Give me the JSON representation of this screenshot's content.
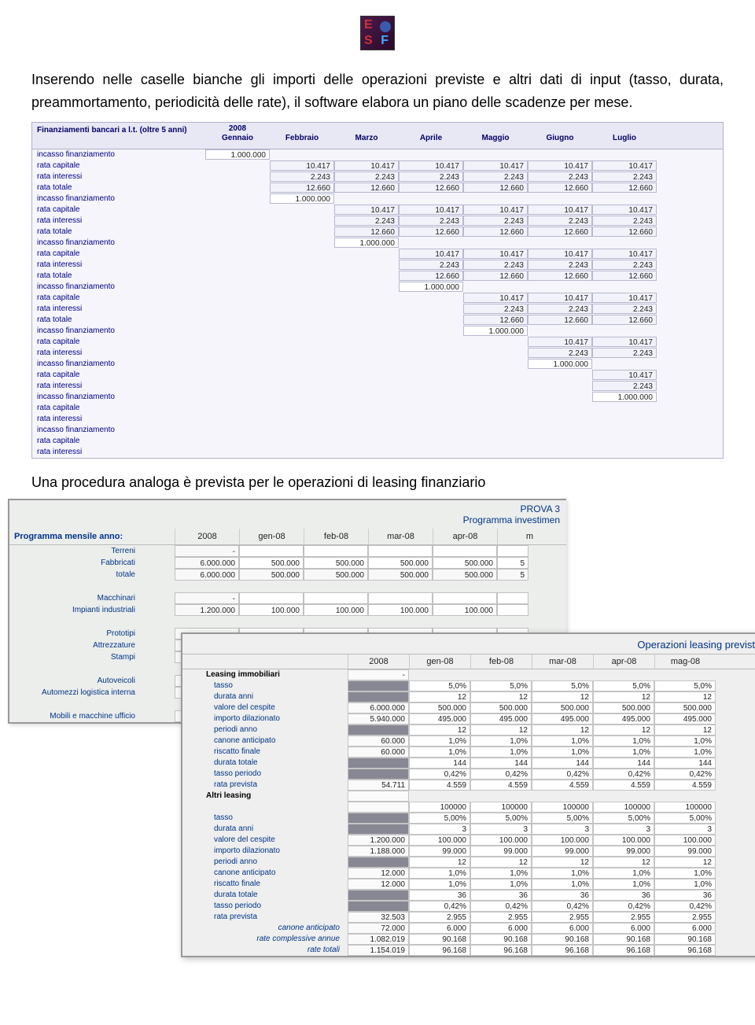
{
  "intro_text": "Inserendo nelle caselle bianche gli importi delle operazioni previste e altri dati di input (tasso, durata, preammortamento, periodicità delle rate), il software elabora un piano delle scadenze per mese.",
  "mid_text": "Una procedura analoga è prevista per le operazioni di leasing finanziario",
  "table1": {
    "title": "Finanziamenti bancari a l.t. (oltre 5 anni)",
    "year": "2008",
    "months": [
      "Gennaio",
      "Febbraio",
      "Marzo",
      "Aprile",
      "Maggio",
      "Giugno",
      "Luglio"
    ],
    "rowLabels": [
      "incasso finanziamento",
      "rata capitale",
      "rata interessi",
      "rata totale"
    ],
    "incasso": "1.000.000",
    "rata_capitale": "10.417",
    "rata_interessi": "2.243",
    "rata_totale": "12.660",
    "colors": {
      "header_bg": "#e8e8f5",
      "body_bg": "#f5f5fb",
      "cell_border": "#b8b8d0",
      "label_color": "#000088"
    }
  },
  "table2": {
    "title1": "PROVA 3",
    "title2": "Programma investimen",
    "rowTitle": "Programma mensile anno:",
    "year": "2008",
    "months": [
      "gen-08",
      "feb-08",
      "mar-08",
      "apr-08",
      "m"
    ],
    "rows": [
      {
        "label": "Terreni",
        "vals": [
          "-",
          "",
          "",
          "",
          "",
          ""
        ]
      },
      {
        "label": "Fabbricati",
        "vals": [
          "6.000.000",
          "500.000",
          "500.000",
          "500.000",
          "500.000",
          "5"
        ]
      },
      {
        "label": "totale",
        "tot": true,
        "vals": [
          "6.000.000",
          "500.000",
          "500.000",
          "500.000",
          "500.000",
          "5"
        ]
      },
      {
        "label": "",
        "blank": true
      },
      {
        "label": "Macchinari",
        "vals": [
          "-",
          "",
          "",
          "",
          "",
          ""
        ]
      },
      {
        "label": "Impianti industriali",
        "vals": [
          "1.200.000",
          "100.000",
          "100.000",
          "100.000",
          "100.000",
          ""
        ]
      },
      {
        "label": "",
        "blank": true
      },
      {
        "label": "Prototipi",
        "vals": [
          "",
          "",
          "",
          "",
          "",
          ""
        ]
      },
      {
        "label": "Attrezzature",
        "vals": [
          "",
          "",
          "",
          "",
          "",
          ""
        ]
      },
      {
        "label": "Stampi",
        "vals": [
          "",
          "",
          "",
          "",
          "",
          ""
        ]
      },
      {
        "label": "",
        "blank": true
      },
      {
        "label": "Autoveicoli",
        "vals": [
          "",
          "",
          "",
          "",
          "",
          ""
        ]
      },
      {
        "label": "Automezzi logistica interna",
        "vals": [
          "",
          "",
          "",
          "",
          "",
          ""
        ]
      },
      {
        "label": "",
        "blank": true
      },
      {
        "label": "Mobili e macchine ufficio",
        "vals": [
          "",
          "",
          "",
          "",
          "",
          ""
        ]
      }
    ]
  },
  "table3": {
    "title": "Operazioni leasing previst",
    "year": "2008",
    "months": [
      "gen-08",
      "feb-08",
      "mar-08",
      "apr-08",
      "mag-08"
    ],
    "sections": [
      {
        "header": "Leasing immobiliari",
        "dash": "-",
        "rows": [
          {
            "label": "tasso",
            "g": true,
            "vals": [
              "5,0%",
              "5,0%",
              "5,0%",
              "5,0%",
              "5,0%"
            ]
          },
          {
            "label": "durata anni",
            "g": true,
            "vals": [
              "12",
              "12",
              "12",
              "12",
              "12"
            ]
          },
          {
            "label": "valore del cespite",
            "vals0": "6.000.000",
            "vals": [
              "500.000",
              "500.000",
              "500.000",
              "500.000",
              "500.000"
            ]
          },
          {
            "label": "importo dilazionato",
            "vals0": "5.940.000",
            "vals": [
              "495.000",
              "495.000",
              "495.000",
              "495.000",
              "495.000"
            ]
          },
          {
            "label": "periodi anno",
            "g": true,
            "vals": [
              "12",
              "12",
              "12",
              "12",
              "12"
            ]
          },
          {
            "label": "canone anticipato",
            "vals0": "60.000",
            "vals": [
              "1,0%",
              "1,0%",
              "1,0%",
              "1,0%",
              "1,0%"
            ]
          },
          {
            "label": "riscatto finale",
            "vals0": "60.000",
            "vals": [
              "1,0%",
              "1,0%",
              "1,0%",
              "1,0%",
              "1,0%"
            ]
          },
          {
            "label": "durata totale",
            "g": true,
            "vals": [
              "144",
              "144",
              "144",
              "144",
              "144"
            ]
          },
          {
            "label": "tasso periodo",
            "g": true,
            "vals": [
              "0,42%",
              "0,42%",
              "0,42%",
              "0,42%",
              "0,42%"
            ]
          },
          {
            "label": "rata prevista",
            "vals0": "54.711",
            "vals": [
              "4.559",
              "4.559",
              "4.559",
              "4.559",
              "4.559"
            ]
          }
        ]
      },
      {
        "header": "Altri leasing",
        "dash": "",
        "rows": [
          {
            "label": "",
            "vals0": "",
            "vals": [
              "100000",
              "100000",
              "100000",
              "100000",
              "100000"
            ],
            "noLabel": true
          },
          {
            "label": "tasso",
            "g": true,
            "vals": [
              "5,00%",
              "5,00%",
              "5,00%",
              "5,00%",
              "5,00%"
            ]
          },
          {
            "label": "durata anni",
            "g": true,
            "vals": [
              "3",
              "3",
              "3",
              "3",
              "3"
            ]
          },
          {
            "label": "valore del cespite",
            "vals0": "1.200.000",
            "vals": [
              "100.000",
              "100.000",
              "100.000",
              "100.000",
              "100.000"
            ]
          },
          {
            "label": "importo dilazionato",
            "vals0": "1.188.000",
            "vals": [
              "99.000",
              "99.000",
              "99.000",
              "99.000",
              "99.000"
            ]
          },
          {
            "label": "periodi anno",
            "g": true,
            "vals": [
              "12",
              "12",
              "12",
              "12",
              "12"
            ]
          },
          {
            "label": "canone anticipato",
            "vals0": "12.000",
            "vals": [
              "1,0%",
              "1,0%",
              "1,0%",
              "1,0%",
              "1,0%"
            ]
          },
          {
            "label": "riscatto finale",
            "vals0": "12.000",
            "vals": [
              "1,0%",
              "1,0%",
              "1,0%",
              "1,0%",
              "1,0%"
            ]
          },
          {
            "label": "durata totale",
            "g": true,
            "vals": [
              "36",
              "36",
              "36",
              "36",
              "36"
            ]
          },
          {
            "label": "tasso periodo",
            "g": true,
            "vals": [
              "0,42%",
              "0,42%",
              "0,42%",
              "0,42%",
              "0,42%"
            ]
          },
          {
            "label": "rata prevista",
            "vals0": "32.503",
            "vals": [
              "2.955",
              "2.955",
              "2.955",
              "2.955",
              "2.955"
            ]
          }
        ]
      },
      {
        "footer": true,
        "rows": [
          {
            "label": "canone anticipato",
            "vals0": "72.000",
            "vals": [
              "6.000",
              "6.000",
              "6.000",
              "6.000",
              "6.000"
            ]
          },
          {
            "label": "rate complessive annue",
            "vals0": "1.082.019",
            "vals": [
              "90.168",
              "90.168",
              "90.168",
              "90.168",
              "90.168"
            ]
          },
          {
            "label": "rate totali",
            "vals0": "1.154.019",
            "vals": [
              "96.168",
              "96.168",
              "96.168",
              "96.168",
              "96.168"
            ]
          }
        ]
      }
    ]
  }
}
